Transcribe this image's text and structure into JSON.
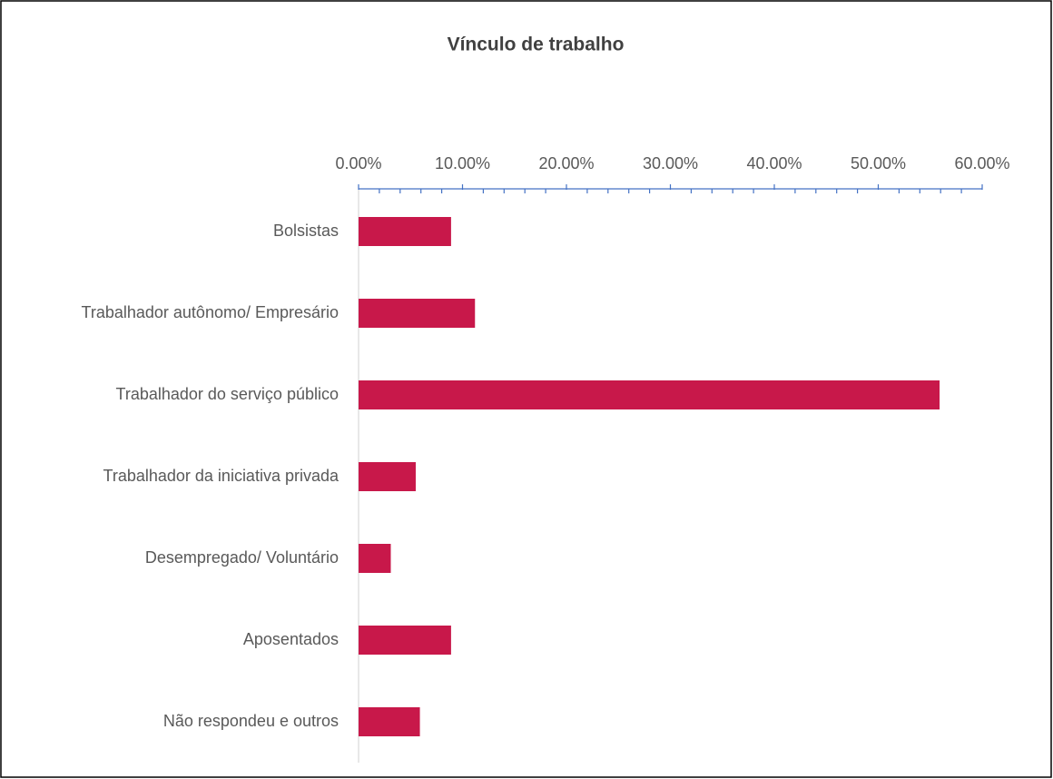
{
  "chart_data": {
    "type": "bar",
    "orientation": "horizontal",
    "title": "Vínculo de trabalho",
    "categories": [
      "Bolsistas",
      "Trabalhador autônomo/ Empresário",
      "Trabalhador do serviço público",
      "Trabalhador da iniciativa privada",
      "Desempregado/ Voluntário",
      "Aposentados",
      "Não respondeu e outros"
    ],
    "values": [
      8.9,
      11.2,
      55.9,
      5.5,
      3.1,
      8.9,
      5.9
    ],
    "color": "#c8184a",
    "xlim": [
      0,
      60
    ],
    "xticks": [
      {
        "value": 0,
        "label": "0.00%"
      },
      {
        "value": 10,
        "label": "10.00%"
      },
      {
        "value": 20,
        "label": "20.00%"
      },
      {
        "value": 30,
        "label": "30.00%"
      },
      {
        "value": 40,
        "label": "40.00%"
      },
      {
        "value": 50,
        "label": "50.00%"
      },
      {
        "value": 60,
        "label": "60.00%"
      }
    ],
    "minor_xticks": [
      2,
      4,
      6,
      8,
      12,
      14,
      16,
      18,
      22,
      24,
      26,
      28,
      32,
      34,
      36,
      38,
      42,
      44,
      46,
      48,
      52,
      54,
      56,
      58
    ],
    "axis_color": "#4472c4",
    "grid": false
  }
}
